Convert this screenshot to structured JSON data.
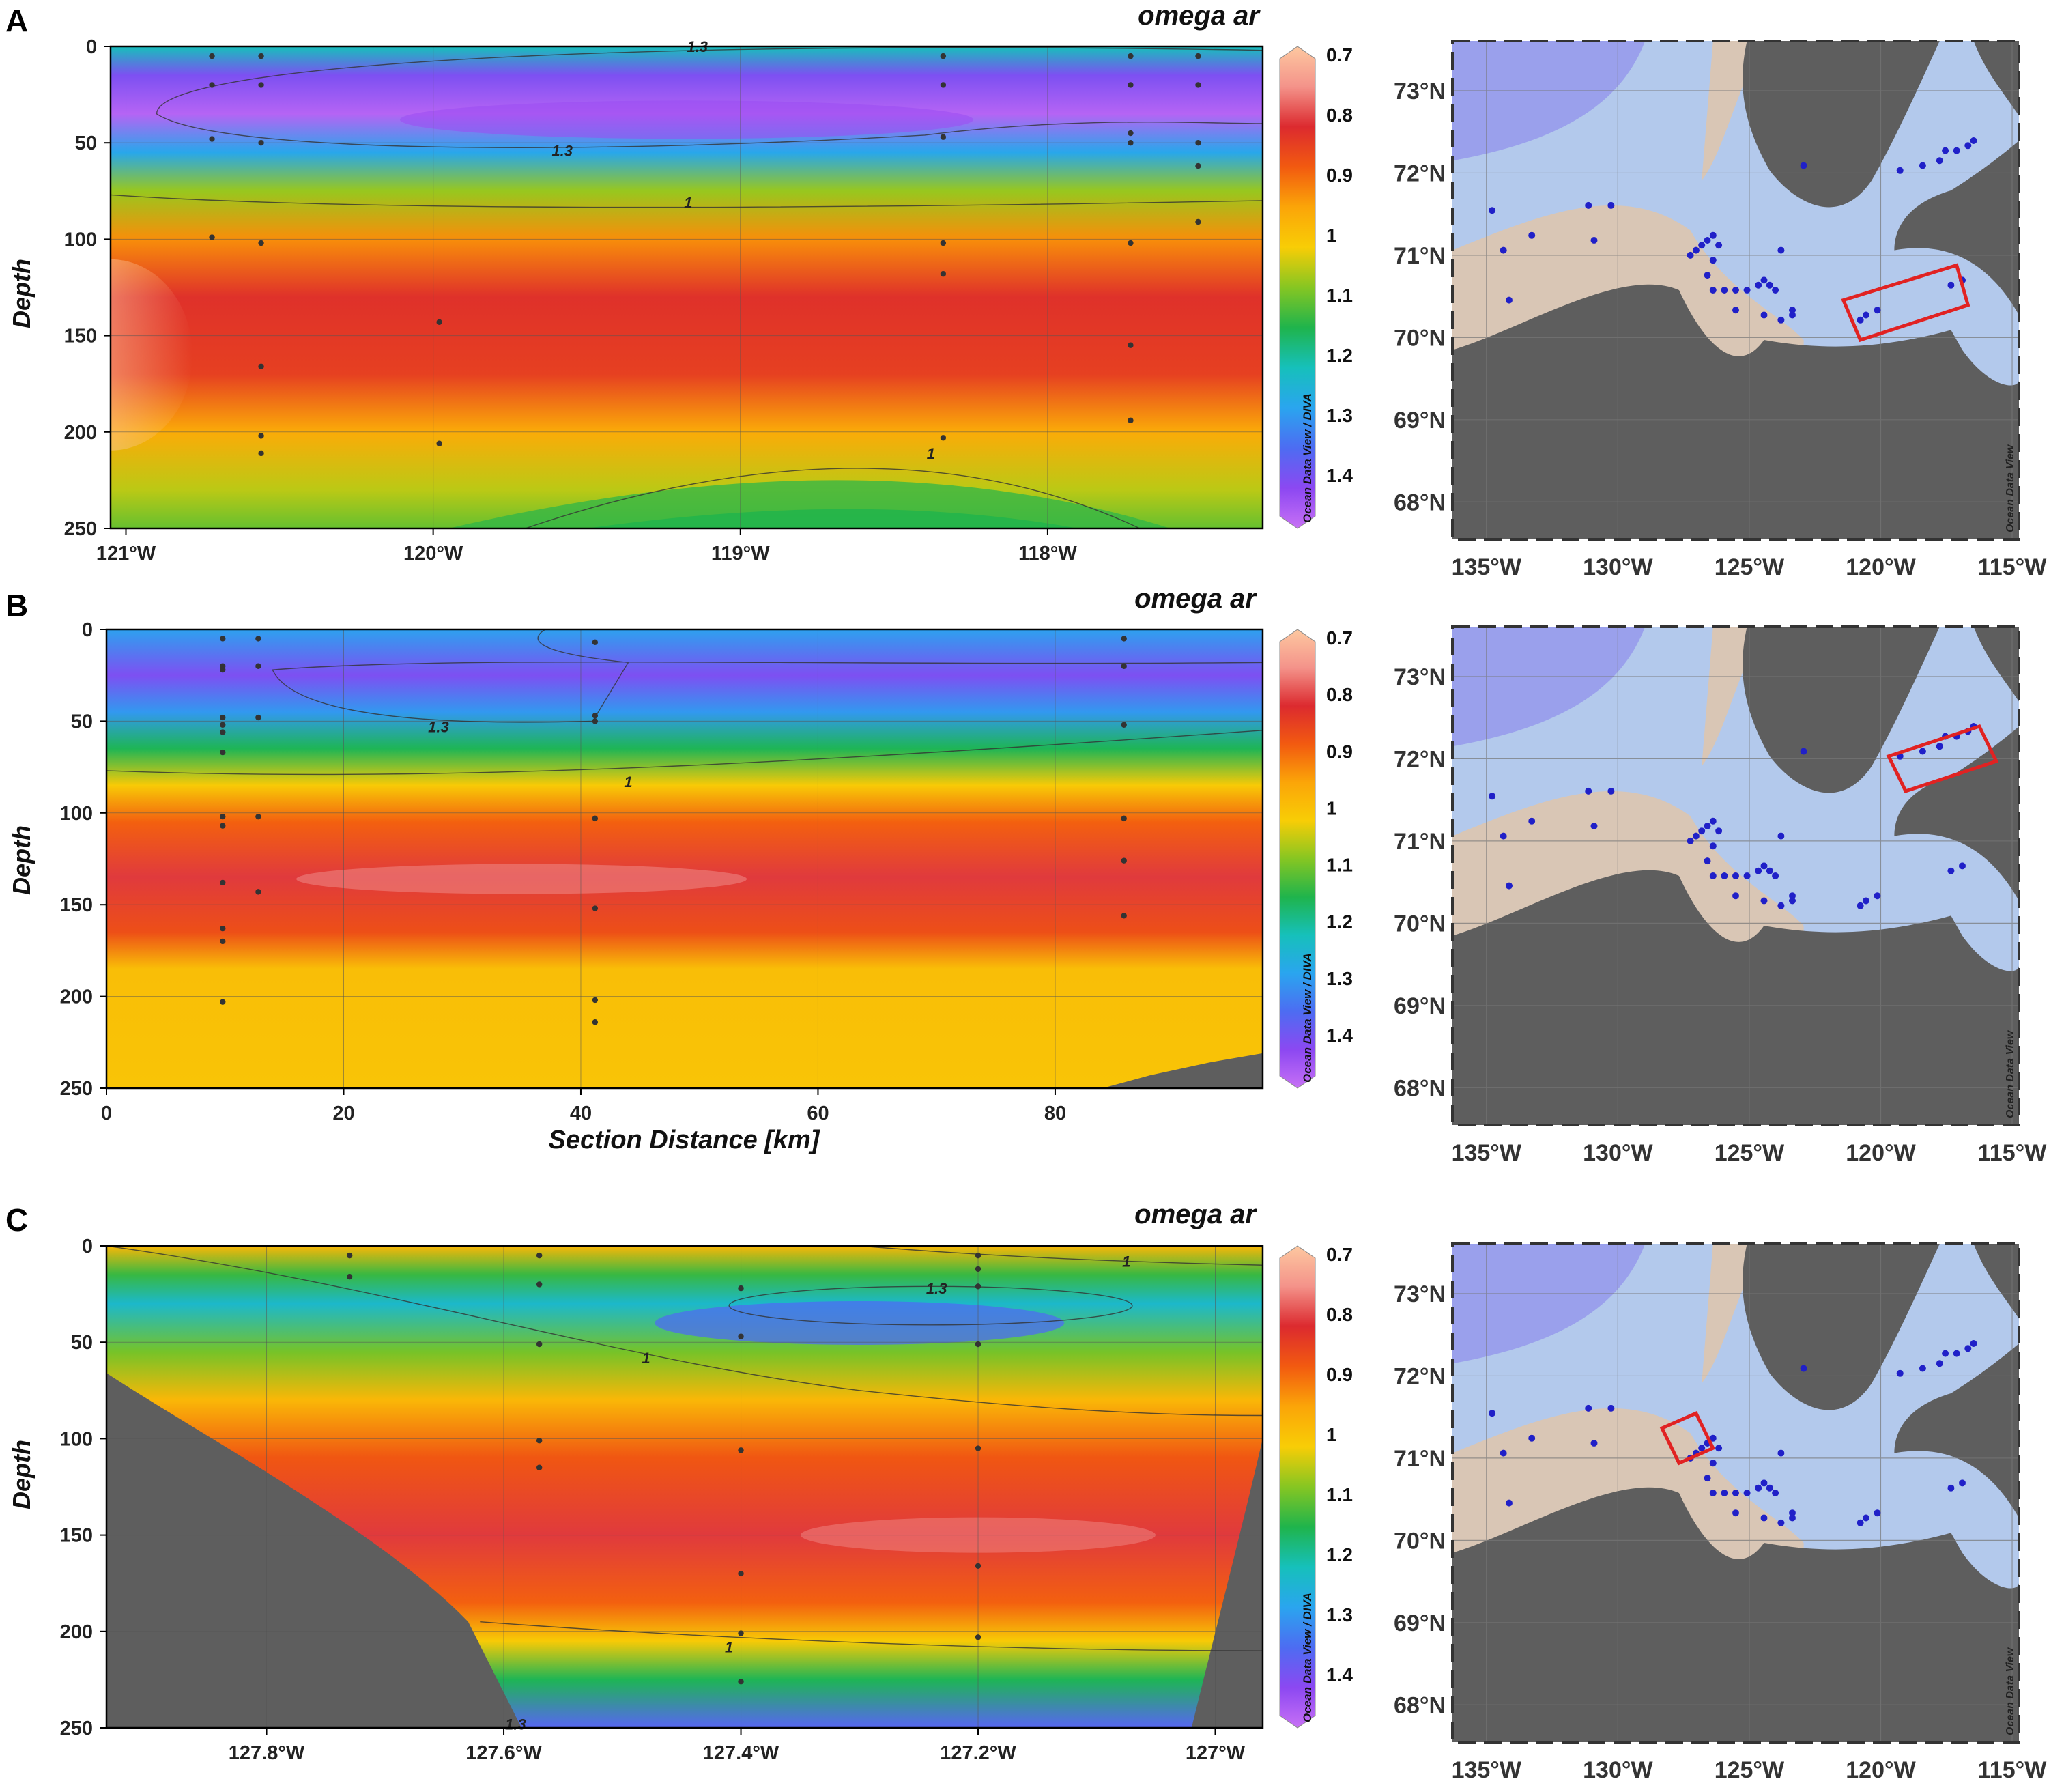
{
  "colors": {
    "scale": [
      "#fdc8a0",
      "#f4938a",
      "#dc2a2f",
      "#f25a10",
      "#fba508",
      "#f8cd06",
      "#86c622",
      "#1fb44c",
      "#16c0bb",
      "#2aa5ef",
      "#4d6cf2",
      "#8c48f2",
      "#c770f5"
    ],
    "land": "#5e5e5e",
    "coast": "#d9c6b5",
    "shelf": "#b3c9ec",
    "deep": "#9aa0ec",
    "station": "#2020c8",
    "box": "#e12222"
  },
  "colorbar": {
    "ticks": [
      "0.7",
      "0.8",
      "0.9",
      "1",
      "1.1",
      "1.2",
      "1.3",
      "1.4"
    ],
    "credit": "Ocean Data View / DIVA"
  },
  "map": {
    "lat_labels": [
      "73°N",
      "72°N",
      "71°N",
      "70°N",
      "69°N",
      "68°N"
    ],
    "lon_labels": [
      "135°W",
      "130°W",
      "125°W",
      "120°W",
      "115°W"
    ],
    "credit": "Ocean Data View"
  },
  "chart_data": [
    {
      "panel": "A",
      "type": "heatmap",
      "title": "omega ar",
      "ylabel": "Depth",
      "xlabel": "",
      "variable": "omega ar",
      "x_ticks": [
        "121°W",
        "120°W",
        "119°W",
        "118°W"
      ],
      "x_tick_values": [
        -121,
        -120,
        -119,
        -118
      ],
      "xlim": [
        -121.05,
        -117.3
      ],
      "ylim": [
        250,
        0
      ],
      "y_ticks": [
        0,
        50,
        100,
        150,
        200,
        250
      ],
      "colorbar_ticks": [
        0.7,
        0.8,
        0.9,
        1,
        1.1,
        1.2,
        1.3,
        1.4
      ],
      "layers": [
        {
          "depth": 0,
          "omega": 1.18
        },
        {
          "depth": 15,
          "omega": 1.36
        },
        {
          "depth": 35,
          "omega": 1.42
        },
        {
          "depth": 55,
          "omega": 1.24
        },
        {
          "depth": 75,
          "omega": 1.04
        },
        {
          "depth": 100,
          "omega": 0.9
        },
        {
          "depth": 130,
          "omega": 0.8
        },
        {
          "depth": 170,
          "omega": 0.82
        },
        {
          "depth": 200,
          "omega": 0.93
        },
        {
          "depth": 230,
          "omega": 1.02
        },
        {
          "depth": 250,
          "omega": 1.07
        }
      ],
      "contour_labels": [
        {
          "x": -119.14,
          "depth": 0,
          "text": "1.3"
        },
        {
          "x": -119.58,
          "depth": 54,
          "text": "1.3"
        },
        {
          "x": -119.17,
          "depth": 81,
          "text": "1"
        },
        {
          "x": -118.38,
          "depth": 211,
          "text": "1"
        }
      ],
      "stations": [
        {
          "x": -120.72,
          "depths": [
            5,
            20,
            48,
            99
          ]
        },
        {
          "x": -120.56,
          "depths": [
            5,
            20,
            50,
            102,
            166,
            202,
            211
          ]
        },
        {
          "x": -119.98,
          "depths": [
            143,
            206
          ]
        },
        {
          "x": -118.34,
          "depths": [
            5,
            20,
            47,
            102,
            118,
            203
          ]
        },
        {
          "x": -117.73,
          "depths": [
            5,
            20,
            45,
            50,
            102,
            155,
            194
          ]
        },
        {
          "x": -117.51,
          "depths": [
            5,
            20,
            50,
            62,
            91
          ]
        }
      ]
    },
    {
      "panel": "B",
      "type": "heatmap",
      "title": "omega ar",
      "ylabel": "Depth",
      "xlabel": "Section Distance [km]",
      "variable": "omega ar",
      "x_ticks": [
        "0",
        "20",
        "40",
        "60",
        "80"
      ],
      "x_tick_values": [
        0,
        20,
        40,
        60,
        80
      ],
      "xlim": [
        0,
        97.5
      ],
      "ylim": [
        250,
        0
      ],
      "y_ticks": [
        0,
        50,
        100,
        150,
        200,
        250
      ],
      "colorbar_ticks": [
        0.7,
        0.8,
        0.9,
        1,
        1.1,
        1.2,
        1.3,
        1.4
      ],
      "layers": [
        {
          "depth": 0,
          "omega": 1.25
        },
        {
          "depth": 25,
          "omega": 1.36
        },
        {
          "depth": 45,
          "omega": 1.26
        },
        {
          "depth": 65,
          "omega": 1.12
        },
        {
          "depth": 85,
          "omega": 0.98
        },
        {
          "depth": 105,
          "omega": 0.86
        },
        {
          "depth": 135,
          "omega": 0.78
        },
        {
          "depth": 165,
          "omega": 0.84
        },
        {
          "depth": 185,
          "omega": 0.96
        },
        {
          "depth": 250,
          "omega": 0.97
        }
      ],
      "contour_labels": [
        {
          "x": 28,
          "depth": 53,
          "text": "1.3"
        },
        {
          "x": 44,
          "depth": 83,
          "text": "1"
        }
      ],
      "stations": [
        {
          "x": 9.8,
          "depths": [
            5,
            20,
            22,
            48,
            52,
            56,
            67,
            102,
            107,
            138,
            163,
            170,
            203
          ]
        },
        {
          "x": 12.8,
          "depths": [
            5,
            20,
            48,
            102,
            143
          ]
        },
        {
          "x": 41.2,
          "depths": [
            7,
            47,
            50,
            103,
            152,
            202,
            214
          ]
        },
        {
          "x": 85.8,
          "depths": [
            5,
            20,
            52,
            103,
            126,
            156
          ]
        }
      ]
    },
    {
      "panel": "C",
      "type": "heatmap",
      "title": "omega ar",
      "ylabel": "Depth",
      "xlabel": "",
      "variable": "omega ar",
      "x_ticks": [
        "127.8°W",
        "127.6°W",
        "127.4°W",
        "127.2°W",
        "127°W"
      ],
      "x_tick_values": [
        -127.8,
        -127.6,
        -127.4,
        -127.2,
        -127.0
      ],
      "xlim": [
        -127.935,
        -126.96
      ],
      "ylim": [
        250,
        0
      ],
      "y_ticks": [
        0,
        50,
        100,
        150,
        200,
        250
      ],
      "colorbar_ticks": [
        0.7,
        0.8,
        0.9,
        1,
        1.1,
        1.2,
        1.3,
        1.4
      ],
      "layers": [
        {
          "depth": 0,
          "omega": 0.95
        },
        {
          "depth": 15,
          "omega": 1.1
        },
        {
          "depth": 30,
          "omega": 1.2
        },
        {
          "depth": 55,
          "omega": 1.06
        },
        {
          "depth": 80,
          "omega": 0.95
        },
        {
          "depth": 110,
          "omega": 0.85
        },
        {
          "depth": 150,
          "omega": 0.78
        },
        {
          "depth": 185,
          "omega": 0.86
        },
        {
          "depth": 205,
          "omega": 0.98
        },
        {
          "depth": 225,
          "omega": 1.12
        },
        {
          "depth": 250,
          "omega": 1.32
        }
      ],
      "contour_labels": [
        {
          "x": -127.075,
          "depth": 8,
          "text": "1"
        },
        {
          "x": -127.235,
          "depth": 22,
          "text": "1.3"
        },
        {
          "x": -127.48,
          "depth": 58,
          "text": "1"
        },
        {
          "x": -127.41,
          "depth": 208,
          "text": "1"
        },
        {
          "x": -127.59,
          "depth": 248,
          "text": "1.3"
        }
      ],
      "stations": [
        {
          "x": -127.73,
          "depths": [
            5,
            16
          ]
        },
        {
          "x": -127.57,
          "depths": [
            5,
            20,
            51,
            101,
            115
          ]
        },
        {
          "x": -127.4,
          "depths": [
            22,
            47,
            106,
            170,
            201,
            226
          ]
        },
        {
          "x": -127.2,
          "depths": [
            5,
            12,
            21,
            51,
            105,
            166,
            203
          ]
        }
      ]
    }
  ]
}
